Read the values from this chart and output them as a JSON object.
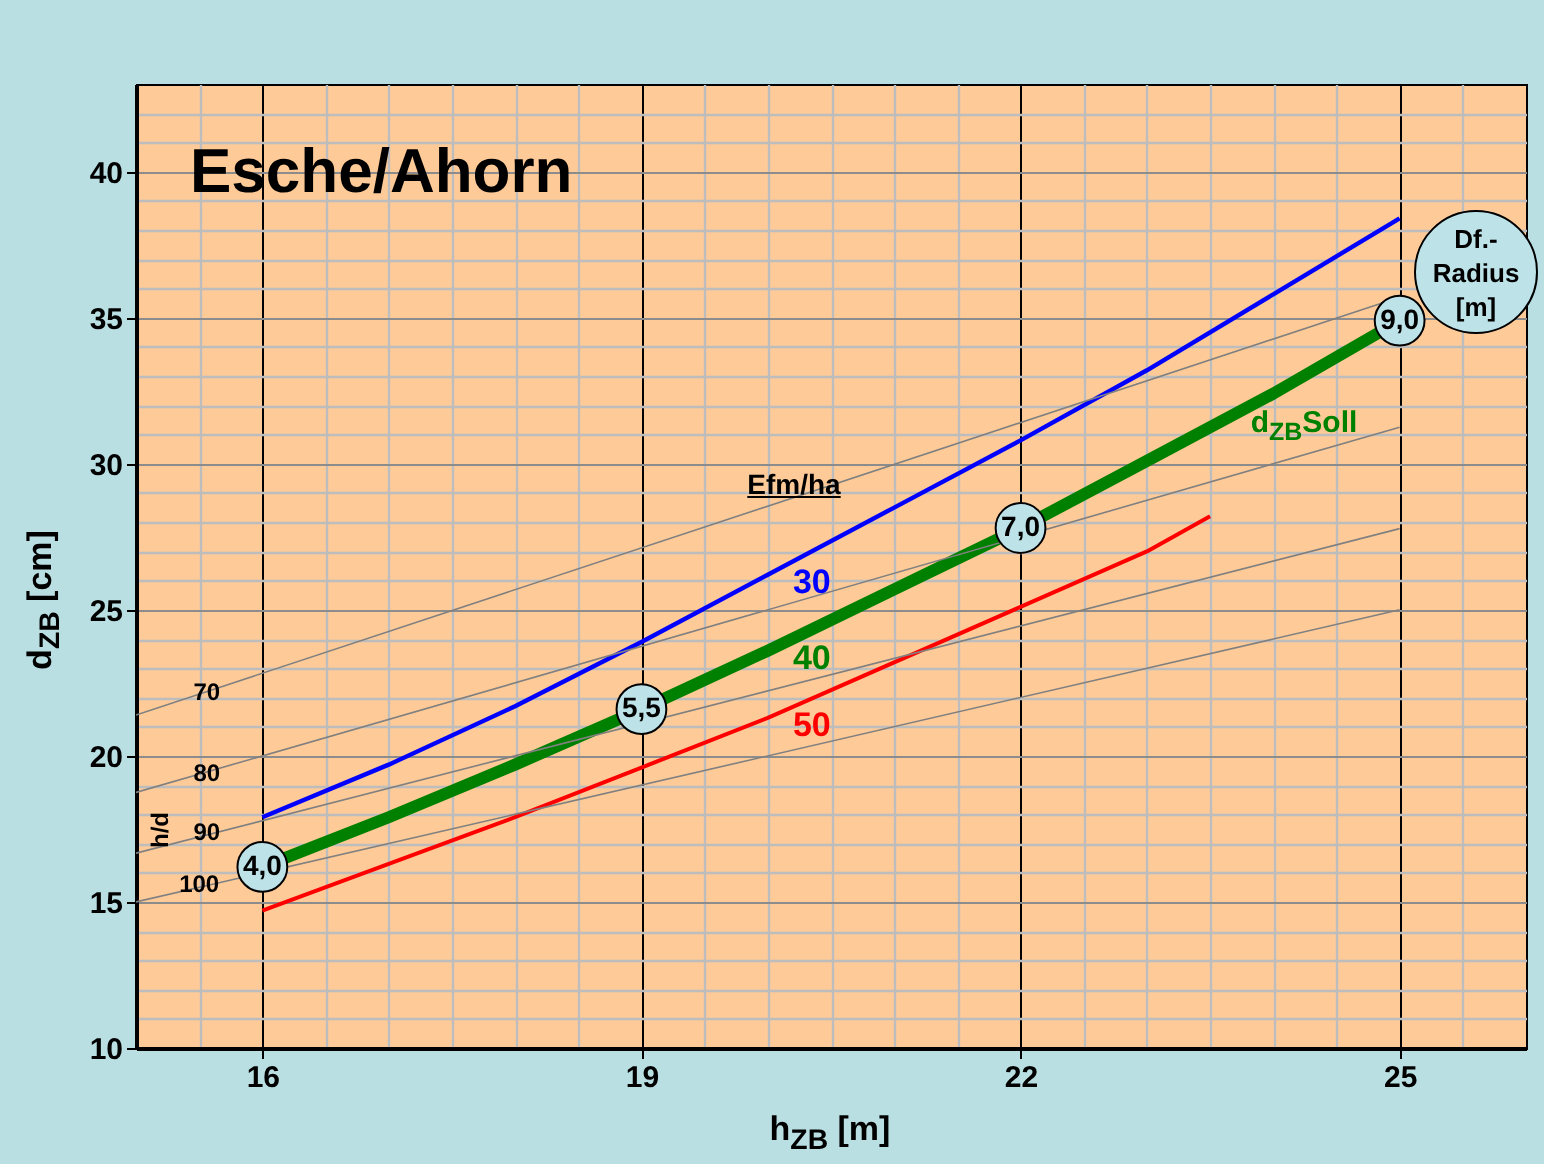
{
  "chart_data": {
    "type": "line",
    "title": "Esche/Ahorn",
    "xlabel": "h$_{ZB}$ [m]",
    "ylabel": "d$_{ZB}$ [cm]",
    "xlim": [
      15,
      26
    ],
    "ylim": [
      10,
      43
    ],
    "xticks": [
      {
        "value": 15,
        "label": null
      },
      {
        "value": 15.5,
        "label": null
      },
      16,
      {
        "value": 16.5,
        "label": null
      },
      {
        "value": 17,
        "label": null
      },
      {
        "value": 17.5,
        "label": null
      },
      {
        "value": 18,
        "label": null
      },
      {
        "value": 18.5,
        "label": null
      },
      19,
      {
        "value": 19.5,
        "label": null
      },
      {
        "value": 20,
        "label": null
      },
      {
        "value": 20.5,
        "label": null
      },
      {
        "value": 21,
        "label": null
      },
      {
        "value": 21.5,
        "label": null
      },
      22,
      {
        "value": 22.5,
        "label": null
      },
      {
        "value": 23,
        "label": null
      },
      {
        "value": 23.5,
        "label": null
      },
      {
        "value": 24,
        "label": null
      },
      {
        "value": 24.5,
        "label": null
      },
      25,
      {
        "value": 25.5,
        "label": null
      }
    ],
    "yticks": [
      10,
      {
        "value": 11,
        "label": null
      },
      {
        "value": 12,
        "label": null
      },
      {
        "value": 13,
        "label": null
      },
      {
        "value": 14,
        "label": null
      },
      15,
      {
        "value": 16,
        "label": null
      },
      {
        "value": 17,
        "label": null
      },
      {
        "value": 18,
        "label": null
      },
      {
        "value": 19,
        "label": null
      },
      20,
      {
        "value": 21,
        "label": null
      },
      {
        "value": 22,
        "label": null
      },
      {
        "value": 23,
        "label": null
      },
      {
        "value": 24,
        "label": null
      },
      25,
      {
        "value": 26,
        "label": null
      },
      {
        "value": 27,
        "label": null
      },
      {
        "value": 28,
        "label": null
      },
      {
        "value": 29,
        "label": null
      },
      30,
      {
        "value": 31,
        "label": null
      },
      {
        "value": 32,
        "label": null
      },
      {
        "value": 33,
        "label": null
      },
      {
        "value": 34,
        "label": null
      },
      35,
      {
        "value": 36,
        "label": null
      },
      {
        "value": 37,
        "label": null
      },
      {
        "value": 38,
        "label": null
      },
      {
        "value": 39,
        "label": null
      },
      40,
      {
        "value": 41,
        "label": null
      },
      {
        "value": 42,
        "label": null
      }
    ],
    "grid": true,
    "marker": "none",
    "line_style": "solid",
    "series": [
      {
        "name": "30",
        "color": "#0000ff",
        "x": [
          16,
          17,
          18,
          19,
          20,
          21,
          22,
          23,
          24,
          25
        ],
        "values": [
          17.9,
          19.7,
          21.7,
          23.9,
          26.2,
          28.5,
          30.8,
          33.2,
          35.8,
          38.4
        ]
      },
      {
        "name": "40",
        "color": "#008000",
        "x": [
          16,
          17,
          18,
          19,
          20,
          21,
          22,
          23,
          24,
          25
        ],
        "values": [
          16.2,
          17.9,
          19.7,
          21.6,
          23.6,
          25.7,
          27.8,
          30.1,
          32.4,
          34.9
        ]
      },
      {
        "name": "50",
        "color": "#ff0000",
        "x": [
          16,
          17,
          18,
          19,
          20,
          21,
          22,
          23,
          23.5
        ],
        "values": [
          14.7,
          16.3,
          17.9,
          19.6,
          21.3,
          23.2,
          25.1,
          27.0,
          28.2
        ]
      },
      {
        "color": "#808080",
        "x": [
          15,
          25
        ],
        "values": [
          21.4,
          35.7
        ]
      },
      {
        "color": "#808080",
        "x": [
          15,
          25
        ],
        "values": [
          18.75,
          31.25
        ]
      },
      {
        "color": "#808080",
        "x": [
          15,
          25
        ],
        "values": [
          16.67,
          27.78
        ]
      },
      {
        "color": "#808080",
        "x": [
          15,
          25
        ],
        "values": [
          15,
          25
        ]
      }
    ],
    "annotations": [
      "Efm/ha",
      "h/d",
      "d$_{ZB}$Soll",
      "Df.-\nRadius\n[m]",
      {
        "text": "4,0",
        "x": 16,
        "y": 16.2
      },
      {
        "text": "5,5",
        "x": 19,
        "y": 21.6
      },
      {
        "text": "7,0",
        "x": 22,
        "y": 27.8
      },
      {
        "text": "9,0",
        "x": 25,
        "y": 34.9
      },
      {
        "text": "70",
        "x": 15.56,
        "y": 22.2
      },
      {
        "text": "80",
        "x": 15.56,
        "y": 19.4
      },
      {
        "text": "90",
        "x": 15.56,
        "y": 17.4
      },
      {
        "text": "100",
        "x": 15.5,
        "y": 15.6
      }
    ]
  }
}
